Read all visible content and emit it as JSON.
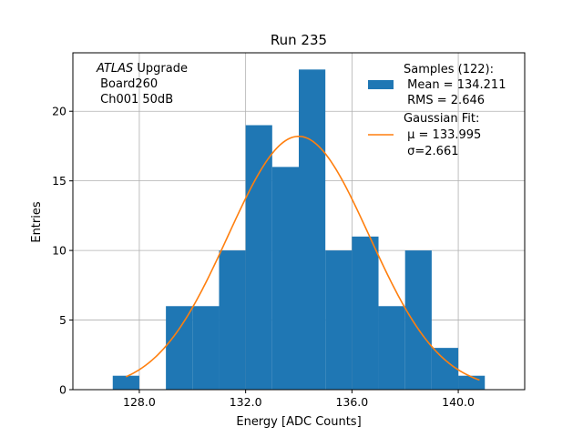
{
  "chart_data": {
    "type": "bar",
    "title": "Run 235",
    "xlabel": "Energy [ADC Counts]",
    "ylabel": "Entries",
    "xlim": [
      125.5,
      142.5
    ],
    "ylim": [
      0,
      24.2
    ],
    "grid": true,
    "xticks": [
      128,
      132,
      136,
      140
    ],
    "xtick_labels": [
      "128.0",
      "132.0",
      "136.0",
      "140.0"
    ],
    "yticks": [
      0,
      5,
      10,
      15,
      20
    ],
    "ytick_labels": [
      "0",
      "5",
      "10",
      "15",
      "20"
    ],
    "bin_width": 1,
    "bins_left": [
      127,
      128,
      129,
      130,
      131,
      132,
      133,
      134,
      135,
      136,
      137,
      138,
      139,
      140
    ],
    "values": [
      1,
      0,
      6,
      6,
      10,
      19,
      16,
      23,
      10,
      11,
      6,
      10,
      3,
      1
    ],
    "bar_color": "#1f77b4",
    "fit": {
      "mu": 133.995,
      "sigma": 2.661,
      "amplitude": 18.2,
      "x_range": [
        127.5,
        140.8
      ],
      "color": "#ff7f0e"
    },
    "annotation": [
      "ATLAS Upgrade",
      " Board260",
      " Ch001 50dB"
    ],
    "legend": {
      "position": "upper right",
      "entries": [
        {
          "name": "samples",
          "kind": "patch",
          "lines": [
            "Samples (122):",
            " Mean = 134.211",
            " RMS = 2.646"
          ]
        },
        {
          "name": "gaussian-fit",
          "kind": "line",
          "lines": [
            "Gaussian Fit:",
            " μ = 133.995",
            " σ=2.661"
          ]
        }
      ]
    }
  }
}
